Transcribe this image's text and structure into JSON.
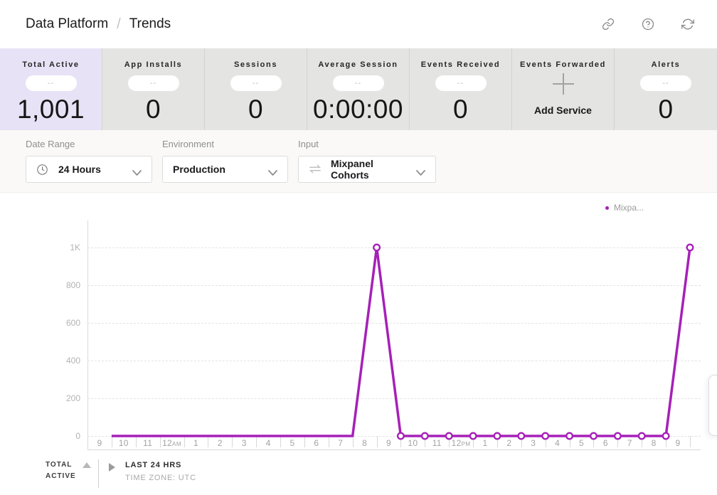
{
  "header": {
    "breadcrumb": {
      "section": "Data Platform",
      "separator": "/",
      "page": "Trends"
    }
  },
  "stats": {
    "tiles": [
      {
        "label": "Total Active",
        "pill": "--",
        "value": "1,001",
        "selected": true
      },
      {
        "label": "App Installs",
        "pill": "--",
        "value": "0"
      },
      {
        "label": "Sessions",
        "pill": "--",
        "value": "0"
      },
      {
        "label": "Average Session",
        "pill": "--",
        "value": "0:00:00"
      },
      {
        "label": "Events Received",
        "pill": "--",
        "value": "0"
      },
      {
        "label": "Events Forwarded",
        "action": "Add Service"
      },
      {
        "label": "Alerts",
        "pill": "--",
        "value": "0"
      }
    ]
  },
  "filters": {
    "groups": [
      {
        "label": "Date Range",
        "value": "24 Hours"
      },
      {
        "label": "Environment",
        "value": "Production"
      },
      {
        "label": "Input",
        "value": "Mixpanel Cohorts"
      }
    ]
  },
  "chart_data": {
    "type": "line",
    "title": "",
    "xlabel": "",
    "ylabel": "",
    "ylim": [
      0,
      1000
    ],
    "grid": "horizontal-dashed",
    "legend_position": "top-right",
    "x_labels": [
      "9",
      "10",
      "11",
      "12AM",
      "1",
      "2",
      "3",
      "4",
      "5",
      "6",
      "7",
      "8",
      "9",
      "10",
      "11",
      "12PM",
      "1",
      "2",
      "3",
      "4",
      "5",
      "6",
      "7",
      "8",
      "9"
    ],
    "y_ticks": [
      {
        "value": 0,
        "label": "0"
      },
      {
        "value": 200,
        "label": "200"
      },
      {
        "value": 400,
        "label": "400"
      },
      {
        "value": 600,
        "label": "600"
      },
      {
        "value": 800,
        "label": "800"
      },
      {
        "value": 1000,
        "label": "1K"
      }
    ],
    "series": [
      {
        "name": "Mixpanel Cohorts",
        "legend_label": "Mixpa...",
        "color": "#a620b8",
        "marker_from_index": 11,
        "values": [
          0,
          0,
          0,
          0,
          0,
          0,
          0,
          0,
          0,
          0,
          0,
          1000,
          0,
          0,
          0,
          0,
          0,
          0,
          0,
          0,
          0,
          0,
          0,
          0,
          1000
        ]
      }
    ]
  },
  "footer": {
    "metric_line1": "TOTAL",
    "metric_line2": "ACTIVE",
    "range": "LAST 24 HRS",
    "timezone": "TIME ZONE: UTC"
  }
}
